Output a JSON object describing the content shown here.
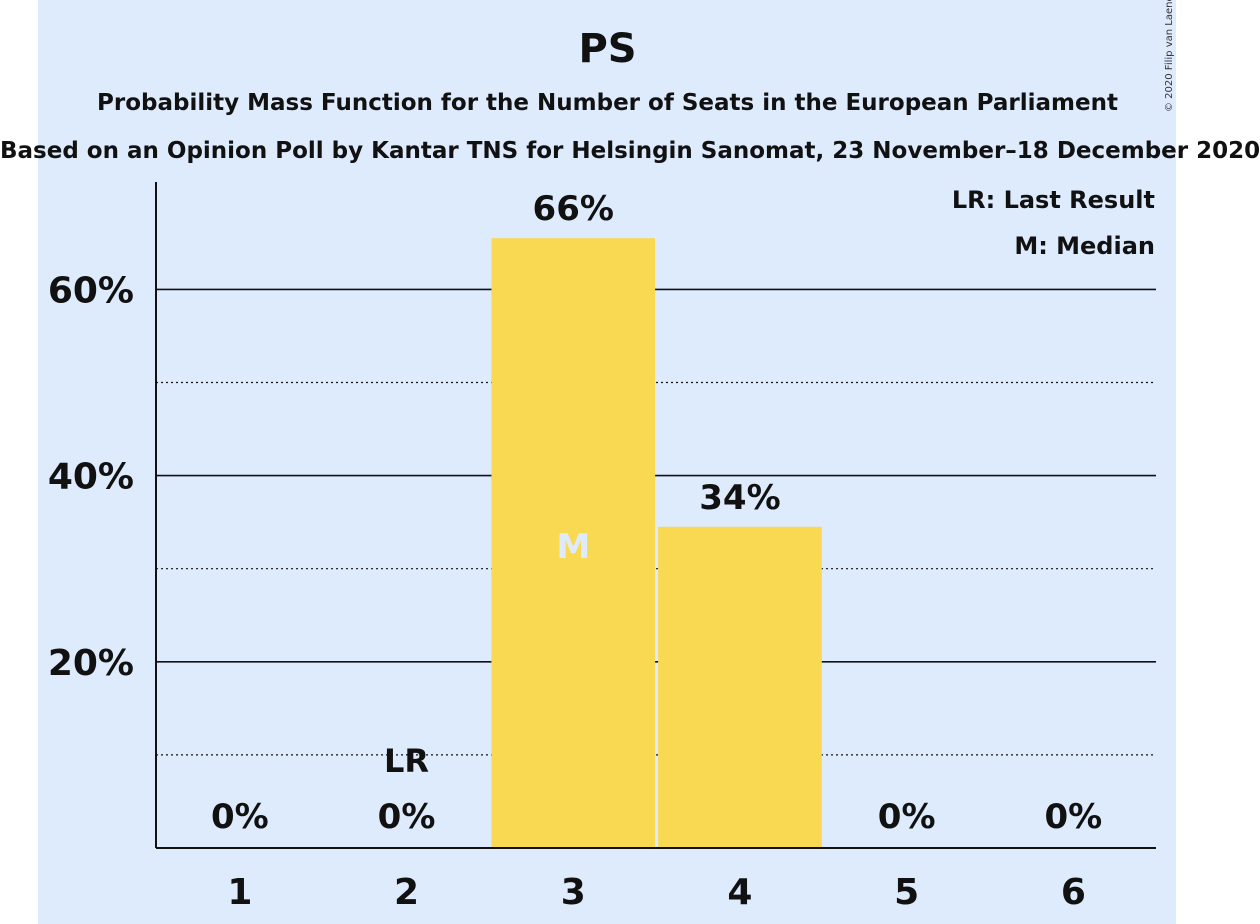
{
  "chart_data": {
    "type": "bar",
    "title": "PS",
    "subtitle": "Probability Mass Function for the Number of Seats in the European Parliament",
    "subtitle2": "Based on an Opinion Poll by Kantar TNS for Helsingin Sanomat, 23 November–18 December 2020",
    "copyright": "© 2020 Filip van Laenen",
    "categories": [
      "1",
      "2",
      "3",
      "4",
      "5",
      "6"
    ],
    "values": [
      0,
      0,
      65.5,
      34.5,
      0,
      0
    ],
    "value_labels": [
      "0%",
      "0%",
      "66%",
      "34%",
      "0%",
      "0%"
    ],
    "ylim": [
      0,
      71
    ],
    "y_ticks": [
      20,
      40,
      60
    ],
    "y_tick_labels": [
      "20%",
      "40%",
      "60%"
    ],
    "minor_gridlines": [
      10,
      30,
      50
    ],
    "last_result": {
      "category": "2",
      "label": "LR"
    },
    "median": {
      "category": "3",
      "label": "M"
    },
    "legend": [
      "LR: Last Result",
      "M: Median"
    ],
    "colors": {
      "background": "#deebfd",
      "bar": "#f9d852",
      "median_label": "#deebfd",
      "text": "#111111"
    }
  }
}
